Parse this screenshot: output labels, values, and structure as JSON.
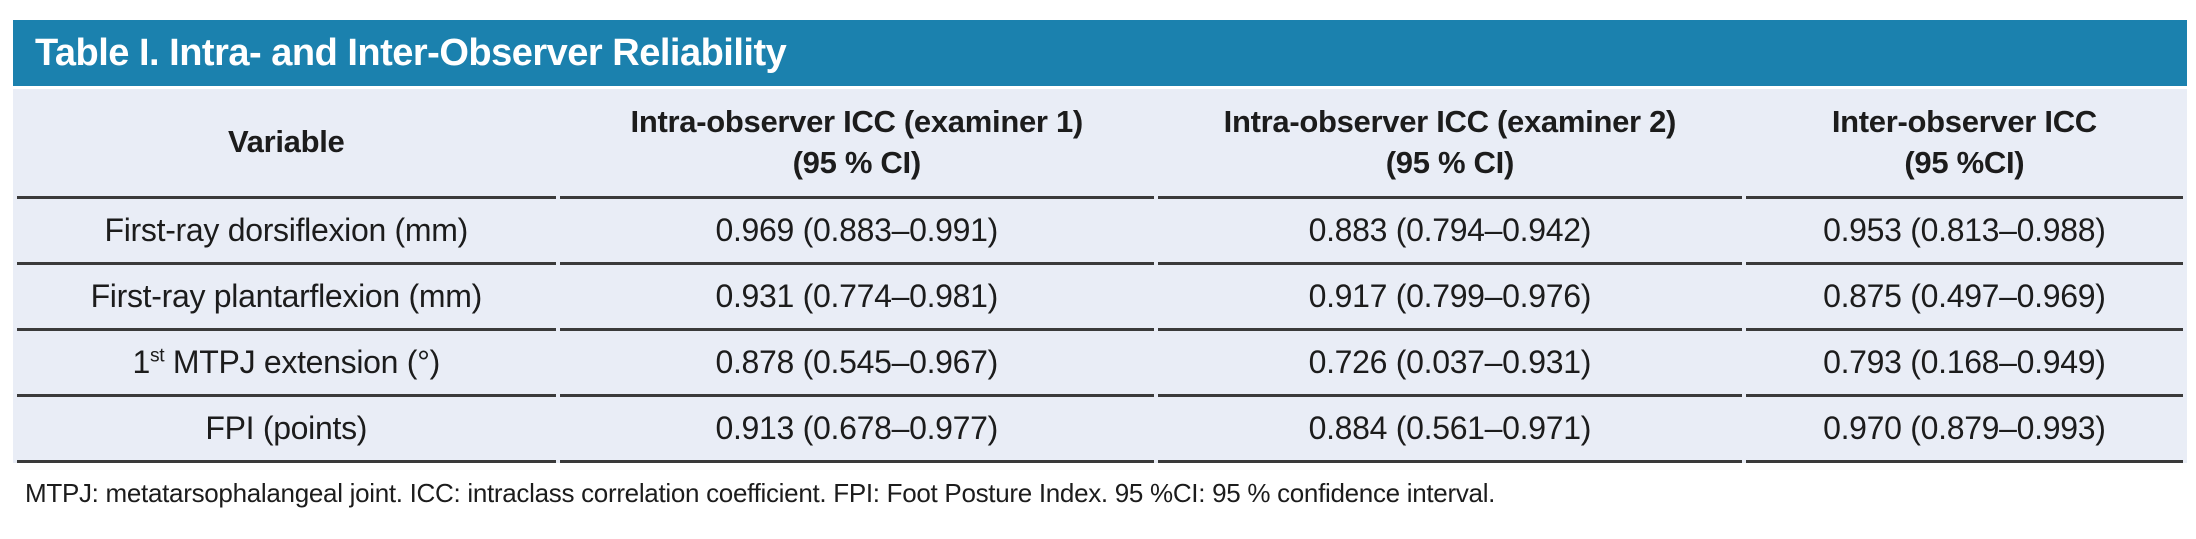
{
  "colors": {
    "title_bar_bg": "#1b81ae",
    "title_text": "#ffffff",
    "body_bg": "#e9edf6",
    "row_line": "#3a3a3a",
    "text": "#1c1c1c"
  },
  "title": "Table I. Intra- and Inter-Observer Reliability",
  "table": {
    "columns": [
      {
        "label": "Variable",
        "sub": ""
      },
      {
        "label": "Intra-observer ICC (examiner 1)",
        "sub": "(95 % CI)"
      },
      {
        "label": "Intra-observer ICC (examiner 2)",
        "sub": "(95 % CI)"
      },
      {
        "label": "Inter-observer ICC",
        "sub": "(95 %CI)"
      }
    ],
    "rows": [
      {
        "variable": {
          "pre": "First-ray dorsiflexion (mm)",
          "sup": "",
          "post": ""
        },
        "cells": [
          "0.969 (0.883–0.991)",
          "0.883 (0.794–0.942)",
          "0.953 (0.813–0.988)"
        ]
      },
      {
        "variable": {
          "pre": "First-ray plantarflexion (mm)",
          "sup": "",
          "post": ""
        },
        "cells": [
          "0.931 (0.774–0.981)",
          "0.917 (0.799–0.976)",
          "0.875 (0.497–0.969)"
        ]
      },
      {
        "variable": {
          "pre": "1",
          "sup": "st",
          "post": " MTPJ extension (°)"
        },
        "cells": [
          "0.878 (0.545–0.967)",
          "0.726 (0.037–0.931)",
          "0.793 (0.168–0.949)"
        ]
      },
      {
        "variable": {
          "pre": "FPI (points)",
          "sup": "",
          "post": ""
        },
        "cells": [
          "0.913 (0.678–0.977)",
          "0.884 (0.561–0.971)",
          "0.970 (0.879–0.993)"
        ]
      }
    ]
  },
  "footnote": "MTPJ: metatarsophalangeal joint. ICC: intraclass correlation coefficient. FPI: Foot Posture Index. 95 %CI: 95 % confidence interval."
}
